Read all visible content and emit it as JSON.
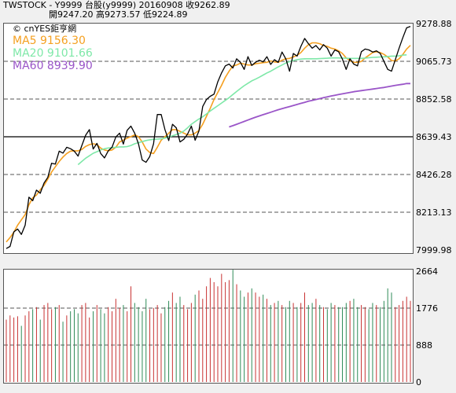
{
  "header": {
    "line1": "TWSTOCK - Y9999 台股(y9999) 20160908 收9262.89",
    "line2": "開9247.20 高9273.57 低9224.89"
  },
  "watermark": "© cnYES鉅亨網",
  "legend": [
    {
      "label": "MA5 9156.30",
      "color": "#f5a020"
    },
    {
      "label": "MA20 9101.66",
      "color": "#7ee8a8"
    },
    {
      "label": "MA60 8939.90",
      "color": "#9a55c8"
    }
  ],
  "colors": {
    "price": "#000000",
    "volume_up": "#c83232",
    "volume_down": "#2e8b57"
  },
  "chart_data": [
    {
      "type": "line",
      "panel": "price",
      "yticks": [
        "9278.88",
        "9065.73",
        "8852.58",
        "8639.43",
        "8426.28",
        "8213.13",
        "7999.98"
      ],
      "ylim": [
        7999.98,
        9278.88
      ],
      "series": [
        {
          "key": "close",
          "values": [
            8008,
            8020,
            8102,
            8118,
            8088,
            8140,
            8298,
            8278,
            8338,
            8320,
            8378,
            8410,
            8490,
            8485,
            8558,
            8547,
            8580,
            8572,
            8558,
            8530,
            8590,
            8648,
            8680,
            8570,
            8602,
            8545,
            8520,
            8560,
            8580,
            8638,
            8660,
            8598,
            8676,
            8700,
            8660,
            8600,
            8508,
            8495,
            8528,
            8600,
            8765,
            8765,
            8680,
            8618,
            8710,
            8690,
            8610,
            8625,
            8655,
            8700,
            8620,
            8672,
            8810,
            8850,
            8868,
            8880,
            8950,
            9000,
            9040,
            9050,
            9028,
            9080,
            9060,
            9020,
            9092,
            9042,
            9060,
            9072,
            9062,
            9092,
            9048,
            9075,
            9060,
            9118,
            9080,
            9010,
            9110,
            9095,
            9150,
            9195,
            9165,
            9140,
            9155,
            9130,
            9160,
            9140,
            9095,
            9130,
            9120,
            9078,
            9020,
            9080,
            9050,
            9040,
            9120,
            9135,
            9130,
            9118,
            9125,
            9110,
            9065,
            9020,
            9010,
            9075,
            9140,
            9200,
            9255,
            9263
          ]
        },
        {
          "key": "MA5",
          "name": "MA5",
          "values": [
            8045,
            8070,
            8100,
            8140,
            8170,
            8200,
            8255,
            8295,
            8310,
            8340,
            8365,
            8400,
            8440,
            8470,
            8500,
            8525,
            8545,
            8558,
            8560,
            8560,
            8568,
            8585,
            8595,
            8600,
            8595,
            8575,
            8565,
            8560,
            8565,
            8580,
            8610,
            8620,
            8632,
            8640,
            8650,
            8640,
            8610,
            8570,
            8550,
            8545,
            8580,
            8620,
            8640,
            8660,
            8680,
            8680,
            8670,
            8660,
            8650,
            8650,
            8660,
            8675,
            8710,
            8755,
            8800,
            8850,
            8890,
            8930,
            8975,
            9010,
            9040,
            9045,
            9055,
            9050,
            9045,
            9045,
            9052,
            9055,
            9058,
            9060,
            9068,
            9062,
            9060,
            9072,
            9080,
            9082,
            9090,
            9100,
            9115,
            9140,
            9160,
            9170,
            9170,
            9165,
            9155,
            9150,
            9140,
            9135,
            9125,
            9110,
            9085,
            9070,
            9060,
            9060,
            9065,
            9085,
            9100,
            9115,
            9120,
            9115,
            9105,
            9090,
            9070,
            9068,
            9080,
            9105,
            9135,
            9156
          ]
        },
        {
          "key": "MA20",
          "name": "MA20",
          "start": 19,
          "values": [
            8482,
            8500,
            8518,
            8532,
            8546,
            8555,
            8565,
            8572,
            8576,
            8578,
            8580,
            8582,
            8582,
            8584,
            8590,
            8600,
            8606,
            8612,
            8618,
            8622,
            8625,
            8626,
            8628,
            8632,
            8638,
            8645,
            8652,
            8660,
            8672,
            8690,
            8710,
            8725,
            8740,
            8752,
            8768,
            8785,
            8800,
            8815,
            8830,
            8845,
            8860,
            8878,
            8895,
            8912,
            8928,
            8942,
            8955,
            8965,
            8976,
            8988,
            9000,
            9010,
            9022,
            9034,
            9045,
            9056,
            9064,
            9070,
            9075,
            9078,
            9080,
            9080,
            9080,
            9080,
            9081,
            9082,
            9083,
            9085,
            9085,
            9085,
            9084,
            9083,
            9082,
            9082,
            9082,
            9082,
            9084,
            9086,
            9088,
            9089,
            9090,
            9091,
            9093,
            9095,
            9095,
            9097,
            9101,
            9102
          ]
        },
        {
          "key": "MA60",
          "name": "MA60",
          "start": 59,
          "values": [
            8695,
            8702,
            8710,
            8718,
            8726,
            8734,
            8742,
            8750,
            8757,
            8764,
            8771,
            8778,
            8785,
            8792,
            8798,
            8804,
            8810,
            8816,
            8822,
            8828,
            8834,
            8840,
            8845,
            8850,
            8855,
            8860,
            8865,
            8870,
            8874,
            8878,
            8882,
            8886,
            8890,
            8894,
            8897,
            8900,
            8903,
            8906,
            8909,
            8912,
            8915,
            8918,
            8922,
            8926,
            8930,
            8933,
            8936,
            8940,
            8940
          ]
        }
      ]
    },
    {
      "type": "bar",
      "panel": "volume",
      "yticks": [
        "2664",
        "1776",
        "888",
        "0"
      ],
      "ylim": [
        0,
        2664
      ],
      "values": [
        1500,
        1600,
        1550,
        1580,
        1350,
        1600,
        1700,
        1750,
        1800,
        1500,
        1850,
        1900,
        1750,
        1800,
        1850,
        1450,
        1600,
        1700,
        1750,
        1650,
        1850,
        1900,
        1550,
        1700,
        1850,
        1750,
        1650,
        1800,
        1700,
        2000,
        1780,
        1850,
        1700,
        2300,
        1900,
        1800,
        1700,
        2000,
        1750,
        1780,
        1850,
        1650,
        1800,
        1950,
        2150,
        1900,
        2050,
        1850,
        1750,
        1900,
        2100,
        2200,
        2000,
        2300,
        2500,
        2400,
        2300,
        2600,
        2400,
        2450,
        2700,
        2350,
        2200,
        2050,
        2150,
        2250,
        2150,
        2050,
        2100,
        2000,
        1850,
        1900,
        1950,
        1850,
        1800,
        1950,
        1900,
        1800,
        1900,
        2150,
        1850,
        1900,
        2000,
        1850,
        1800,
        1750,
        1900,
        1850,
        1800,
        1800,
        1900,
        1950,
        2000,
        1800,
        1850,
        1800,
        1750,
        1900,
        1850,
        1800,
        1950,
        2250,
        2150,
        1800,
        1850,
        1950,
        2050,
        1950
      ]
    }
  ]
}
